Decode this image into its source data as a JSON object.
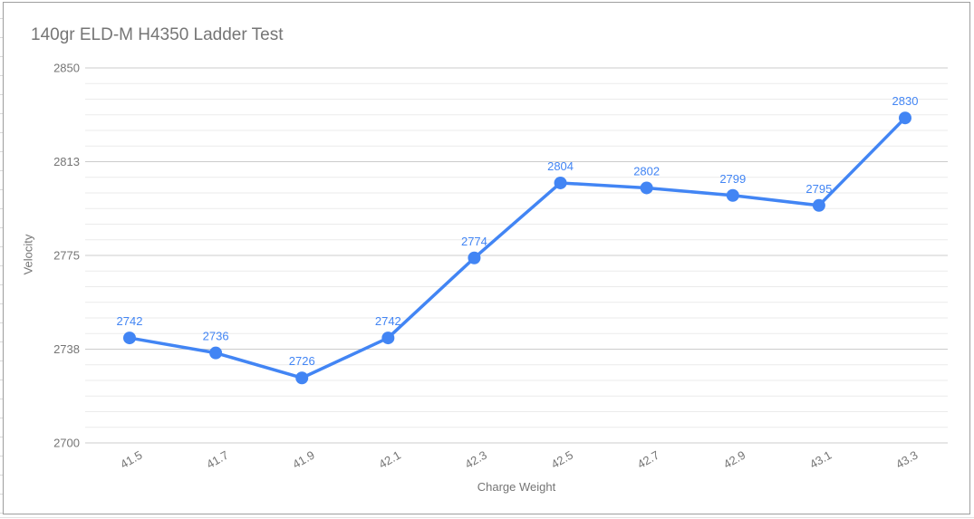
{
  "chart_data": {
    "type": "line",
    "title": "140gr ELD-M H4350 Ladder Test",
    "xlabel": "Charge Weight",
    "ylabel": "Velocity",
    "categories": [
      "41.5",
      "41.7",
      "41.9",
      "42.1",
      "42.3",
      "42.5",
      "42.7",
      "42.9",
      "43.1",
      "43.3"
    ],
    "values": [
      2742,
      2736,
      2726,
      2742,
      2774,
      2804,
      2802,
      2799,
      2795,
      2830
    ],
    "data_labels": [
      "2742",
      "2736",
      "2726",
      "2742",
      "2774",
      "2804",
      "2802",
      "2799",
      "2795",
      "2830"
    ],
    "y_tick_labels_top_to_bottom": [
      "2850",
      "2813",
      "2775",
      "2738",
      "2700"
    ],
    "ylim": [
      2700,
      2850
    ],
    "minor_gridlines_between_majors": 5,
    "grid": true,
    "legend_position": "none",
    "colors": {
      "series": "#4285f4",
      "data_label_text": "#4285f4",
      "major_grid": "#cccccc",
      "minor_grid": "#ebebeb",
      "title_text": "#757575",
      "axis_text": "#757575",
      "background": "#ffffff",
      "frame_border": "#9e9e9e"
    }
  }
}
